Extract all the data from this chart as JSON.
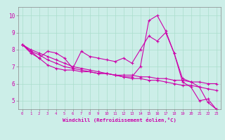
{
  "xlabel": "Windchill (Refroidissement éolien,°C)",
  "ylabel": "",
  "bg_color": "#cceee8",
  "line_color": "#cc00aa",
  "grid_color": "#aaddcc",
  "axis_color": "#888888",
  "xlim": [
    -0.5,
    23.5
  ],
  "ylim": [
    4.5,
    10.5
  ],
  "yticks": [
    5,
    6,
    7,
    8,
    9,
    10
  ],
  "xticks": [
    0,
    1,
    2,
    3,
    4,
    5,
    6,
    7,
    8,
    9,
    10,
    11,
    12,
    13,
    14,
    15,
    16,
    17,
    18,
    19,
    20,
    21,
    22,
    23
  ],
  "series": [
    [
      8.3,
      7.9,
      7.5,
      7.9,
      7.8,
      7.5,
      6.9,
      7.9,
      7.6,
      7.5,
      7.4,
      7.3,
      7.5,
      7.2,
      8.0,
      8.8,
      8.5,
      9.0,
      7.8,
      6.3,
      6.1,
      5.8,
      4.9,
      4.5
    ],
    [
      8.3,
      8.0,
      7.8,
      7.6,
      7.4,
      7.2,
      7.0,
      6.9,
      6.8,
      6.7,
      6.6,
      6.5,
      6.4,
      6.3,
      6.3,
      6.2,
      6.2,
      6.1,
      6.0,
      5.9,
      5.9,
      5.8,
      5.7,
      5.6
    ],
    [
      8.3,
      7.8,
      7.5,
      7.1,
      6.9,
      6.8,
      6.8,
      6.7,
      6.7,
      6.6,
      6.6,
      6.5,
      6.5,
      6.5,
      6.4,
      6.4,
      6.3,
      6.3,
      6.2,
      6.2,
      6.1,
      6.1,
      6.0,
      6.0
    ],
    [
      8.3,
      7.9,
      7.7,
      7.4,
      7.2,
      7.0,
      6.9,
      6.8,
      6.7,
      6.6,
      6.6,
      6.5,
      6.4,
      6.4,
      7.0,
      9.7,
      10.0,
      9.1,
      7.8,
      6.1,
      5.8,
      5.0,
      5.1,
      4.5
    ]
  ]
}
